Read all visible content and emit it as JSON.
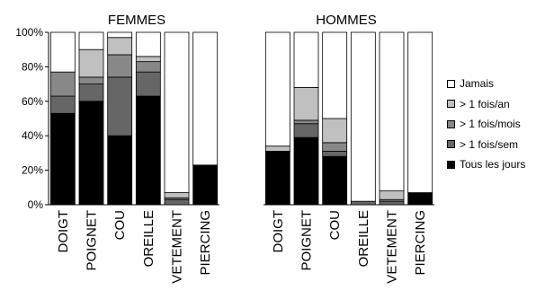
{
  "chart_data": [
    {
      "type": "bar",
      "stacked": true,
      "title": "FEMMES",
      "categories": [
        "DOIGT",
        "POIGNET",
        "COU",
        "OREILLE",
        "VETEMENT",
        "PIERCING"
      ],
      "ylim": [
        0,
        100
      ],
      "yticks": [
        "0%",
        "20%",
        "40%",
        "60%",
        "80%",
        "100%"
      ],
      "series": [
        {
          "name": "Tous les jours",
          "color": "#000000",
          "values": [
            53,
            60,
            40,
            63,
            0,
            23
          ]
        },
        {
          "name": "> 1 fois/sem",
          "color": "#666666",
          "values": [
            10,
            10,
            34,
            14,
            3,
            0
          ]
        },
        {
          "name": "> 1 fois/mois",
          "color": "#888888",
          "values": [
            14,
            4,
            13,
            6,
            1,
            0
          ]
        },
        {
          "name": "> 1 fois/an",
          "color": "#c0c0c0",
          "values": [
            0,
            16,
            10,
            3,
            3,
            0
          ]
        },
        {
          "name": "Jamais",
          "color": "#ffffff",
          "values": [
            23,
            10,
            3,
            14,
            93,
            77
          ]
        }
      ]
    },
    {
      "type": "bar",
      "stacked": true,
      "title": "HOMMES",
      "categories": [
        "DOIGT",
        "POIGNET",
        "COU",
        "OREILLE",
        "VETEMENT",
        "PIERCING"
      ],
      "ylim": [
        0,
        100
      ],
      "series": [
        {
          "name": "Tous les jours",
          "color": "#000000",
          "values": [
            31,
            39,
            28,
            0,
            0,
            7
          ]
        },
        {
          "name": "> 1 fois/sem",
          "color": "#666666",
          "values": [
            0,
            8,
            3,
            2,
            2,
            0
          ]
        },
        {
          "name": "> 1 fois/mois",
          "color": "#888888",
          "values": [
            0,
            2,
            5,
            0,
            1,
            0
          ]
        },
        {
          "name": "> 1 fois/an",
          "color": "#c0c0c0",
          "values": [
            3,
            19,
            14,
            0,
            5,
            0
          ]
        },
        {
          "name": "Jamais",
          "color": "#ffffff",
          "values": [
            66,
            32,
            50,
            98,
            92,
            93
          ]
        }
      ]
    }
  ],
  "legend": [
    {
      "label": "Jamais",
      "color": "#ffffff"
    },
    {
      "label": "> 1 fois/an",
      "color": "#c0c0c0"
    },
    {
      "label": "> 1 fois/mois",
      "color": "#888888"
    },
    {
      "label": "> 1 fois/sem",
      "color": "#666666"
    },
    {
      "label": "Tous les jours",
      "color": "#000000"
    }
  ]
}
